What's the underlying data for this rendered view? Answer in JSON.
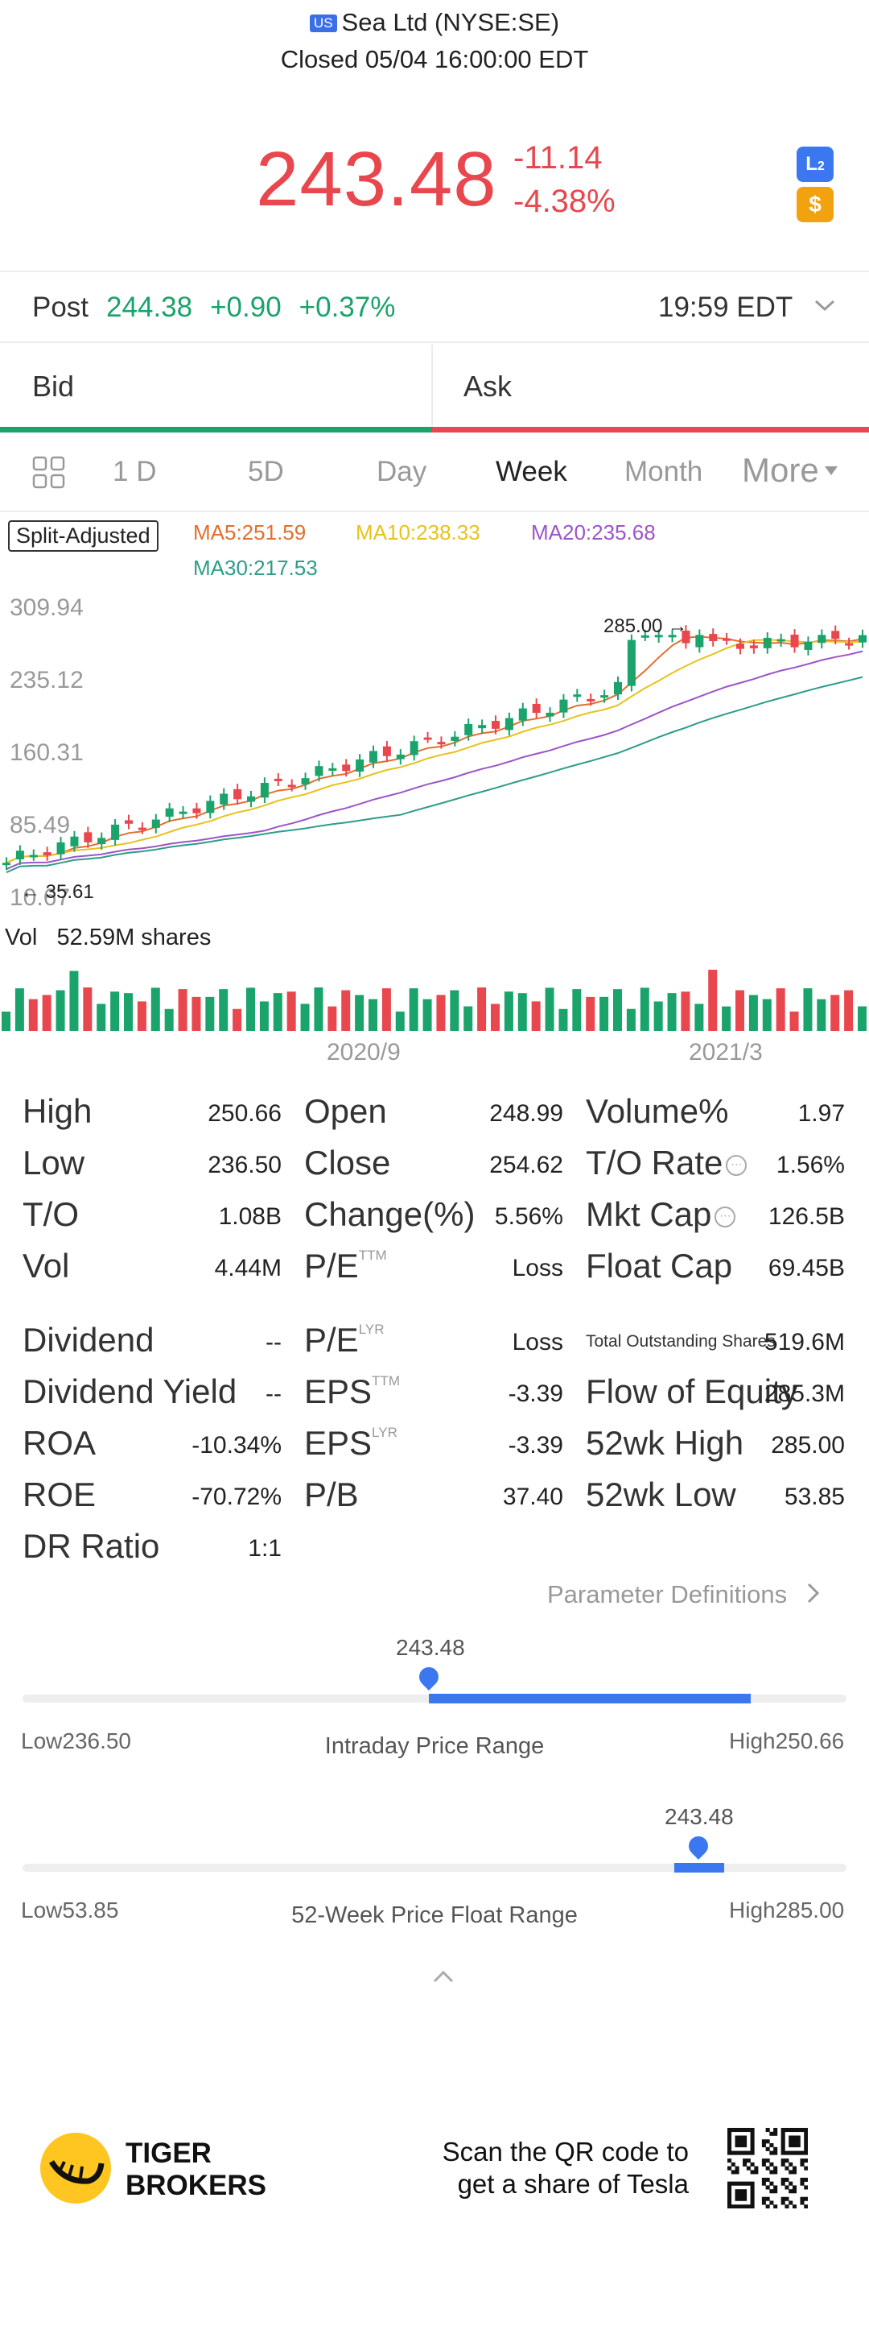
{
  "header": {
    "market_badge": "US",
    "title": "Sea Ltd (NYSE:SE)",
    "status": "Closed 05/04 16:00:00 EDT"
  },
  "quote": {
    "price": "243.48",
    "change": "-11.14",
    "change_pct": "-4.38%",
    "l2_badge": "L2",
    "dollar_badge": "$",
    "color_down": "#e8474d",
    "color_up": "#1aa36a",
    "accent": "#3b78f0"
  },
  "post": {
    "label": "Post",
    "price": "244.38",
    "change": "+0.90",
    "change_pct": "+0.37%",
    "time": "19:59 EDT"
  },
  "orderbook": {
    "bid_label": "Bid",
    "ask_label": "Ask"
  },
  "tabs": {
    "items": [
      "1 D",
      "5D",
      "Day",
      "Week",
      "Month",
      "More"
    ],
    "active": "Week"
  },
  "indicators": {
    "split": "Split-Adjusted",
    "ma5": "MA5:251.59",
    "ma10": "MA10:238.33",
    "ma20": "MA20:235.68",
    "ma30": "MA30:217.53",
    "ma5_color": "#e0702e",
    "ma10_color": "#e8c21c",
    "ma20_color": "#9b55c8",
    "ma30_color": "#2e9c8a"
  },
  "chart_data": {
    "type": "candlestick",
    "y_ticks": [
      "309.94",
      "235.12",
      "160.31",
      "85.49",
      "10.67"
    ],
    "ylim": [
      10.67,
      309.94
    ],
    "high_marker": "285.00",
    "low_marker": "35.61",
    "x_ticks": [
      "2020/9",
      "2021/3"
    ],
    "volume_label": "Vol",
    "volume_value": "52.59M shares"
  },
  "stats": {
    "col1": [
      {
        "label": "High",
        "value": "250.66"
      },
      {
        "label": "Low",
        "value": "236.50"
      },
      {
        "label": "T/O",
        "value": "1.08B"
      },
      {
        "label": "Vol",
        "value": "4.44M"
      },
      {
        "label": "Dividend",
        "value": "--"
      },
      {
        "label": "Dividend Yield",
        "value": "--"
      },
      {
        "label": "ROA",
        "value": "-10.34%"
      },
      {
        "label": "ROE",
        "value": "-70.72%"
      },
      {
        "label": "DR Ratio",
        "value": "1:1"
      }
    ],
    "col2": [
      {
        "label": "Open",
        "value": "248.99"
      },
      {
        "label": "Close",
        "value": "254.62"
      },
      {
        "label": "Change(%)",
        "value": "5.56%"
      },
      {
        "label": "P/E",
        "sup": "TTM",
        "value": "Loss"
      },
      {
        "label": "P/E",
        "sup": "LYR",
        "value": "Loss"
      },
      {
        "label": "EPS",
        "sup": "TTM",
        "value": "-3.39"
      },
      {
        "label": "EPS",
        "sup": "LYR",
        "value": "-3.39"
      },
      {
        "label": "P/B",
        "value": "37.40"
      }
    ],
    "col3": [
      {
        "label": "Volume%",
        "value": "1.97"
      },
      {
        "label": "T/O Rate",
        "value": "1.56%"
      },
      {
        "label": "Mkt Cap",
        "value": "126.5B"
      },
      {
        "label": "Float Cap",
        "value": "69.45B"
      },
      {
        "label": "Total Outstanding Shares",
        "value": "519.6M"
      },
      {
        "label": "Flow of Equity",
        "value": "285.3M"
      },
      {
        "label": "52wk High",
        "value": "285.00"
      },
      {
        "label": "52wk Low",
        "value": "53.85"
      }
    ],
    "info_icon": "⋯"
  },
  "param_def": "Parameter Definitions",
  "intraday": {
    "current": "243.48",
    "low": "Low236.50",
    "high": "High250.66",
    "title": "Intraday Price Range",
    "position": 0.494
  },
  "week52": {
    "current": "243.48",
    "low": "Low53.85",
    "high": "High285.00",
    "title": "52-Week Price Float Range",
    "position": 0.821
  },
  "footer": {
    "brand_line1": "TIGER",
    "brand_line2": "BROKERS",
    "scan_line1": "Scan the QR code to",
    "scan_line2": "get a share of Tesla"
  }
}
